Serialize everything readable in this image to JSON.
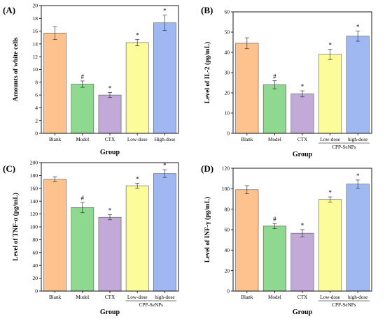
{
  "chart_data": [
    {
      "type": "bar",
      "panel_label": "(A)",
      "ylabel": "Amounts of white cells",
      "xlabel": "Group",
      "ylim": [
        0,
        20
      ],
      "yticks": [
        "0",
        "2",
        "4",
        "6",
        "8",
        "10",
        "12",
        "14",
        "16",
        "18",
        "20"
      ],
      "categories": [
        "Blank",
        "Model",
        "CTX",
        "Low-dose",
        "High-dose"
      ],
      "group_label": "",
      "values": [
        15.7,
        7.7,
        6.0,
        14.2,
        17.3
      ],
      "errors": [
        1.0,
        0.5,
        0.4,
        0.5,
        1.2
      ],
      "markers": [
        "",
        "#",
        "*",
        "*",
        "*"
      ],
      "colors": [
        "#fdc28e",
        "#8fd88f",
        "#c2aad8",
        "#fcfc9a",
        "#9fb8f2"
      ]
    },
    {
      "type": "bar",
      "panel_label": "(B)",
      "ylabel": "Level of IL-2 (pg/mL)",
      "xlabel": "Group",
      "ylim": [
        0,
        60
      ],
      "yticks": [
        "0",
        "10",
        "20",
        "30",
        "40",
        "50",
        "60"
      ],
      "categories": [
        "Blank",
        "Model",
        "CTX",
        "Low-dose",
        "high-dose"
      ],
      "group_label": "CPP-SeNPs",
      "values": [
        44.5,
        24.0,
        19.5,
        39.0,
        48.0
      ],
      "errors": [
        2.7,
        2.0,
        1.5,
        2.5,
        2.5
      ],
      "markers": [
        "",
        "#",
        "*",
        "*",
        "*"
      ],
      "colors": [
        "#fdc28e",
        "#8fd88f",
        "#c2aad8",
        "#fcfc9a",
        "#9fb8f2"
      ]
    },
    {
      "type": "bar",
      "panel_label": "(C)",
      "ylabel": "Level of TNF-α (pg/mL)",
      "xlabel": "Group",
      "ylim": [
        0,
        200
      ],
      "yticks": [
        "0",
        "20",
        "40",
        "60",
        "80",
        "100",
        "120",
        "140",
        "160",
        "180",
        "200"
      ],
      "categories": [
        "Blank",
        "Model",
        "CTX",
        "Low-dose",
        "high-dose"
      ],
      "group_label": "CPP-SeNPs",
      "values": [
        174,
        130,
        115,
        164,
        183
      ],
      "errors": [
        4,
        8,
        4,
        4,
        6
      ],
      "markers": [
        "",
        "#",
        "*",
        "*",
        "*"
      ],
      "colors": [
        "#fdc28e",
        "#8fd88f",
        "#c2aad8",
        "#fcfc9a",
        "#9fb8f2"
      ]
    },
    {
      "type": "bar",
      "panel_label": "(D)",
      "ylabel": "Level of INF-γ (pg/mL)",
      "xlabel": "Group",
      "ylim": [
        0,
        120
      ],
      "yticks": [
        "0",
        "20",
        "40",
        "60",
        "80",
        "100",
        "120"
      ],
      "categories": [
        "Blank",
        "Model",
        "CTX",
        "Low-dose",
        "high-dose"
      ],
      "group_label": "CPP-SeNPs",
      "values": [
        99,
        63.5,
        56.5,
        89.5,
        104.5
      ],
      "errors": [
        4,
        2.5,
        3.5,
        2.5,
        4
      ],
      "markers": [
        "",
        "#",
        "*",
        "*",
        "*"
      ],
      "colors": [
        "#fdc28e",
        "#8fd88f",
        "#c2aad8",
        "#fcfc9a",
        "#9fb8f2"
      ]
    }
  ]
}
